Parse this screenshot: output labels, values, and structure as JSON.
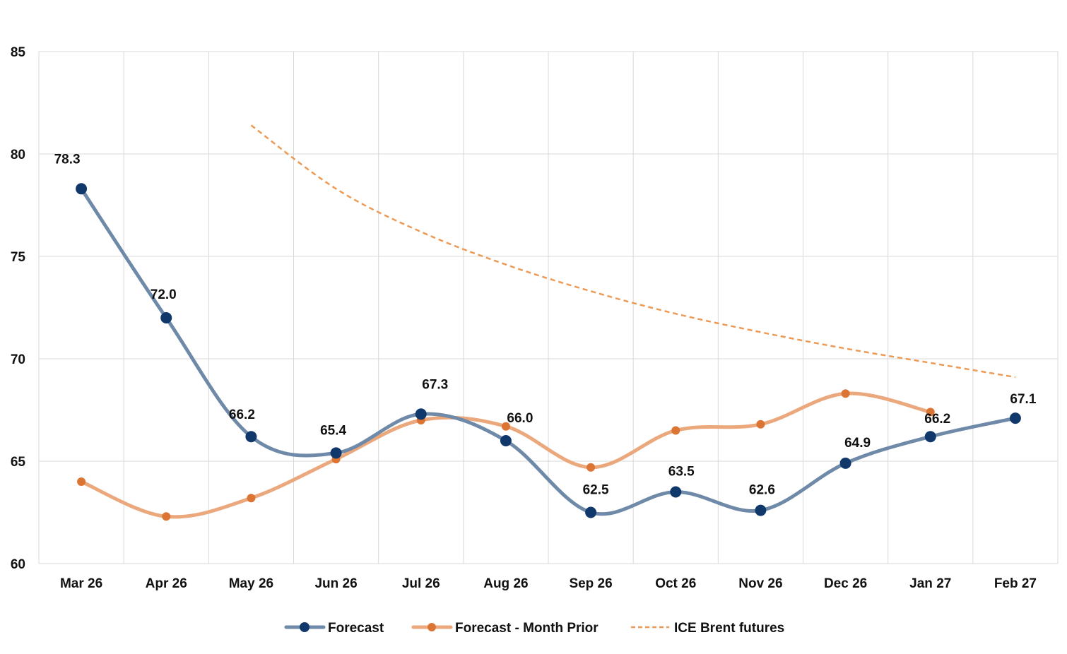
{
  "chart_data": {
    "type": "line",
    "title": "",
    "xlabel": "",
    "ylabel": "",
    "categories": [
      "Mar 26",
      "Apr 26",
      "May 26",
      "Jun 26",
      "Jul 26",
      "Aug 26",
      "Sep 26",
      "Oct 26",
      "Nov 26",
      "Dec 26",
      "Jan 27",
      "Feb 27"
    ],
    "ylim": [
      60,
      85
    ],
    "yticks": [
      60,
      65,
      70,
      75,
      80,
      85
    ],
    "grid": true,
    "legend_position": "bottom",
    "series": [
      {
        "name": "Forecast",
        "style": "smooth-markers-labeled",
        "color": "#6f8aa8",
        "marker_color": "#10386b",
        "values": [
          78.3,
          72.0,
          66.2,
          65.4,
          67.3,
          66.0,
          62.5,
          63.5,
          62.6,
          64.9,
          66.2,
          67.1
        ],
        "labels": [
          "78.3",
          "72.0",
          "66.2",
          "65.4",
          "67.3",
          "66.0",
          "62.5",
          "63.5",
          "62.6",
          "64.9",
          "66.2",
          "67.1"
        ]
      },
      {
        "name": "Forecast - Month Prior",
        "style": "smooth-markers",
        "color": "#eba87c",
        "marker_color": "#dc7434",
        "values": [
          64.0,
          62.3,
          63.2,
          65.1,
          67.0,
          66.7,
          64.7,
          66.5,
          66.8,
          68.3,
          67.4,
          null
        ]
      },
      {
        "name": "ICE Brent futures",
        "style": "dashed",
        "color": "#ec9a55",
        "values": [
          null,
          null,
          81.4,
          78.3,
          76.2,
          74.6,
          73.3,
          72.2,
          71.3,
          70.5,
          69.8,
          69.1
        ]
      }
    ]
  }
}
